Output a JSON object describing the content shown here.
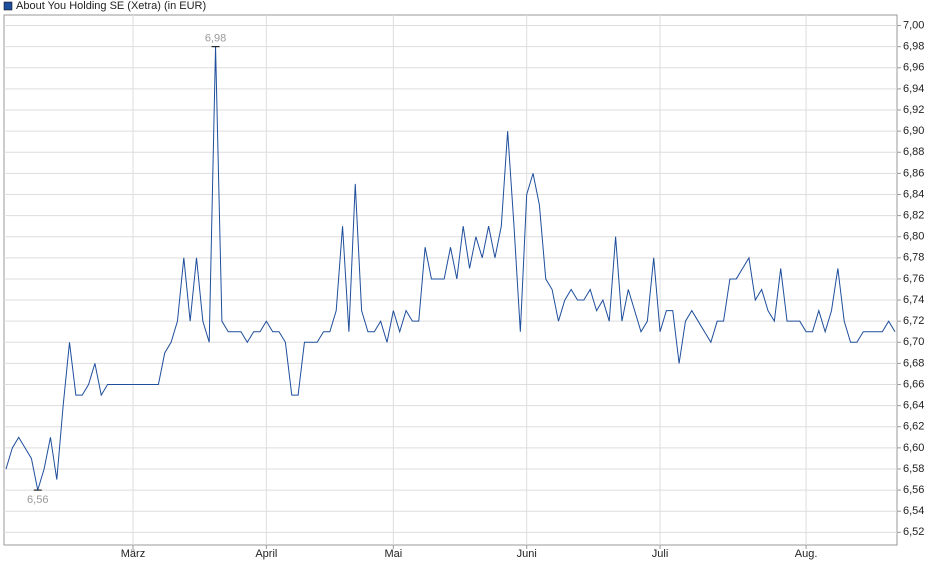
{
  "chart_data": {
    "type": "line",
    "title": "About You Holding SE (Xetra) (in EUR)",
    "categories": [
      null,
      null,
      null,
      null,
      null,
      null,
      null,
      null,
      null,
      null,
      null,
      null,
      null,
      null,
      null,
      null,
      null,
      null,
      null,
      null,
      "März",
      null,
      null,
      null,
      null,
      null,
      null,
      null,
      null,
      null,
      null,
      null,
      null,
      null,
      null,
      null,
      null,
      null,
      null,
      null,
      null,
      "April",
      null,
      null,
      null,
      null,
      null,
      null,
      null,
      null,
      null,
      null,
      null,
      null,
      null,
      null,
      null,
      null,
      null,
      null,
      null,
      "Mai",
      null,
      null,
      null,
      null,
      null,
      null,
      null,
      null,
      null,
      null,
      null,
      null,
      null,
      null,
      null,
      null,
      null,
      null,
      null,
      null,
      "Juni",
      null,
      null,
      null,
      null,
      null,
      null,
      null,
      null,
      null,
      null,
      null,
      null,
      null,
      null,
      null,
      null,
      null,
      null,
      null,
      null,
      "Juli",
      null,
      null,
      null,
      null,
      null,
      null,
      null,
      null,
      null,
      null,
      null,
      null,
      null,
      null,
      null,
      null,
      null,
      null,
      null,
      null,
      null,
      null,
      "Aug.",
      null,
      null,
      null,
      null,
      null,
      null,
      null,
      null,
      null,
      null,
      null,
      null,
      null,
      null
    ],
    "series": [
      {
        "name": "About You Holding SE (Xetra) (in EUR)",
        "color": "#1f4e9c",
        "values": [
          6.58,
          6.6,
          6.61,
          6.6,
          6.59,
          6.56,
          6.58,
          6.61,
          6.57,
          6.64,
          6.7,
          6.65,
          6.65,
          6.66,
          6.68,
          6.65,
          6.66,
          6.66,
          6.66,
          6.66,
          6.66,
          6.66,
          6.66,
          6.66,
          6.66,
          6.69,
          6.7,
          6.72,
          6.78,
          6.72,
          6.78,
          6.72,
          6.7,
          6.98,
          6.72,
          6.71,
          6.71,
          6.71,
          6.7,
          6.71,
          6.71,
          6.72,
          6.71,
          6.71,
          6.7,
          6.65,
          6.65,
          6.7,
          6.7,
          6.7,
          6.71,
          6.71,
          6.73,
          6.81,
          6.71,
          6.85,
          6.73,
          6.71,
          6.71,
          6.72,
          6.7,
          6.73,
          6.71,
          6.73,
          6.72,
          6.72,
          6.79,
          6.76,
          6.76,
          6.76,
          6.79,
          6.76,
          6.81,
          6.77,
          6.8,
          6.78,
          6.81,
          6.78,
          6.81,
          6.9,
          6.81,
          6.71,
          6.84,
          6.86,
          6.83,
          6.76,
          6.75,
          6.72,
          6.74,
          6.75,
          6.74,
          6.74,
          6.75,
          6.73,
          6.74,
          6.72,
          6.8,
          6.72,
          6.75,
          6.73,
          6.71,
          6.72,
          6.78,
          6.71,
          6.73,
          6.73,
          6.68,
          6.72,
          6.73,
          6.72,
          6.71,
          6.7,
          6.72,
          6.72,
          6.76,
          6.76,
          6.77,
          6.78,
          6.74,
          6.75,
          6.73,
          6.72,
          6.77,
          6.72,
          6.72,
          6.72,
          6.71,
          6.71,
          6.73,
          6.71,
          6.73,
          6.77,
          6.72,
          6.7,
          6.7,
          6.71,
          6.71,
          6.71,
          6.71,
          6.72,
          6.71
        ]
      }
    ],
    "max_label": "6,98",
    "min_label": "6,56",
    "ylim": [
      6.508,
      7.01
    ],
    "yticks": [
      {
        "value": 6.52,
        "label": "6,52"
      },
      {
        "value": 6.54,
        "label": "6,54"
      },
      {
        "value": 6.56,
        "label": "6,56"
      },
      {
        "value": 6.58,
        "label": "6,58"
      },
      {
        "value": 6.6,
        "label": "6,60"
      },
      {
        "value": 6.62,
        "label": "6,62"
      },
      {
        "value": 6.64,
        "label": "6,64"
      },
      {
        "value": 6.66,
        "label": "6,66"
      },
      {
        "value": 6.68,
        "label": "6,68"
      },
      {
        "value": 6.7,
        "label": "6,70"
      },
      {
        "value": 6.72,
        "label": "6,72"
      },
      {
        "value": 6.74,
        "label": "6,74"
      },
      {
        "value": 6.76,
        "label": "6,76"
      },
      {
        "value": 6.78,
        "label": "6,78"
      },
      {
        "value": 6.8,
        "label": "6,80"
      },
      {
        "value": 6.82,
        "label": "6,82"
      },
      {
        "value": 6.84,
        "label": "6,84"
      },
      {
        "value": 6.86,
        "label": "6,86"
      },
      {
        "value": 6.88,
        "label": "6,88"
      },
      {
        "value": 6.9,
        "label": "6,90"
      },
      {
        "value": 6.92,
        "label": "6,92"
      },
      {
        "value": 6.94,
        "label": "6,94"
      },
      {
        "value": 6.96,
        "label": "6,96"
      },
      {
        "value": 6.98,
        "label": "6,98"
      },
      {
        "value": 7.0,
        "label": "7,00"
      }
    ],
    "grid": true
  }
}
